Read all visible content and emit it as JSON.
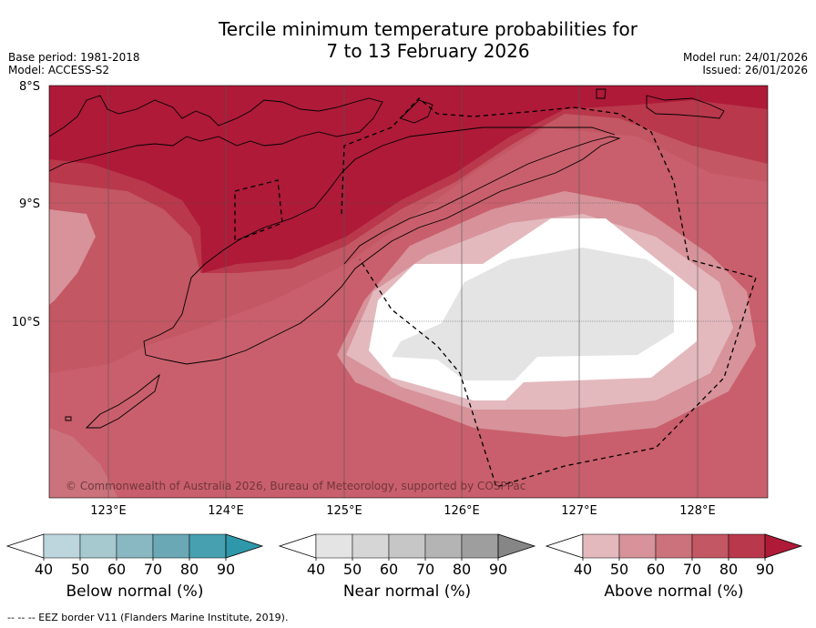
{
  "title": {
    "line1": "Tercile minimum temperature probabilities for",
    "line2": "7 to 13 February 2026"
  },
  "meta_left": {
    "base_period": "Base period: 1981-2018",
    "model": "Model: ACCESS-S2"
  },
  "meta_right": {
    "model_run": "Model run: 24/01/2026",
    "issued": "Issued: 26/01/2026"
  },
  "map": {
    "lat_labels": [
      "8°S",
      "9°S",
      "10°S"
    ],
    "lon_labels": [
      "123°E",
      "124°E",
      "125°E",
      "126°E",
      "127°E",
      "128°E"
    ],
    "copyright": "© Commonwealth of Australia 2026, Bureau of Meteorology, supported by COSPPac"
  },
  "legend": {
    "ticks": [
      "40",
      "50",
      "60",
      "70",
      "80",
      "90"
    ],
    "below": {
      "label": "Below normal (%)",
      "colors": [
        "#bdd5dc",
        "#a6c9cf",
        "#8ab8c2",
        "#6aa8b5",
        "#46a0b0",
        "#2e98aa"
      ]
    },
    "near": {
      "label": "Near normal (%)",
      "colors": [
        "#e4e4e4",
        "#d6d6d6",
        "#c6c6c6",
        "#b4b4b4",
        "#9e9e9e",
        "#868686"
      ]
    },
    "above": {
      "label": "Above normal (%)",
      "colors": [
        "#e3b9be",
        "#d7929a",
        "#cb727c",
        "#c35763",
        "#b9384b",
        "#ae1a38"
      ]
    }
  },
  "footer": "--  --  -- EEZ border V11 (Flanders Marine Institute, 2019)."
}
